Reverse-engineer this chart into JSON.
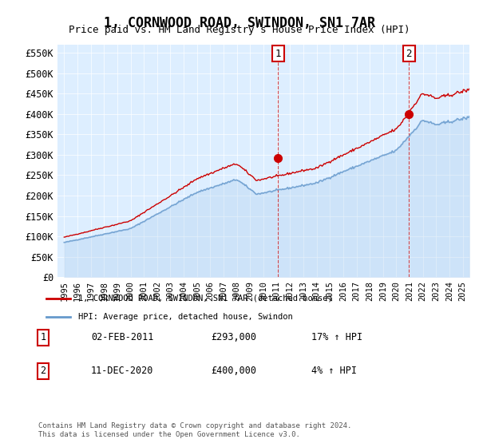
{
  "title": "1, CORNWOOD ROAD, SWINDON, SN1 7AR",
  "subtitle": "Price paid vs. HM Land Registry's House Price Index (HPI)",
  "ylabel_ticks": [
    "£0",
    "£50K",
    "£100K",
    "£150K",
    "£200K",
    "£250K",
    "£300K",
    "£350K",
    "£400K",
    "£450K",
    "£500K",
    "£550K"
  ],
  "ylim": [
    0,
    570000
  ],
  "xlim_start": 1995.0,
  "xlim_end": 2025.5,
  "xtick_years": [
    1995,
    1996,
    1997,
    1998,
    1999,
    2000,
    2001,
    2002,
    2003,
    2004,
    2005,
    2006,
    2007,
    2008,
    2009,
    2010,
    2011,
    2012,
    2013,
    2014,
    2015,
    2016,
    2017,
    2018,
    2019,
    2020,
    2021,
    2022,
    2023,
    2024,
    2025
  ],
  "hpi_color": "#aaccee",
  "hpi_color_dark": "#6699cc",
  "price_color": "#cc0000",
  "bg_color": "#ddeeff",
  "sale1_x": 2011.09,
  "sale1_y": 293000,
  "sale2_x": 2020.95,
  "sale2_y": 400000,
  "sale1_label": "1",
  "sale2_label": "2",
  "legend_line1": "1, CORNWOOD ROAD, SWINDON, SN1 7AR (detached house)",
  "legend_line2": "HPI: Average price, detached house, Swindon",
  "ann1_num": "1",
  "ann1_date": "02-FEB-2011",
  "ann1_price": "£293,000",
  "ann1_hpi": "17% ↑ HPI",
  "ann2_num": "2",
  "ann2_date": "11-DEC-2020",
  "ann2_price": "£400,000",
  "ann2_hpi": "4% ↑ HPI",
  "footer": "Contains HM Land Registry data © Crown copyright and database right 2024.\nThis data is licensed under the Open Government Licence v3.0."
}
